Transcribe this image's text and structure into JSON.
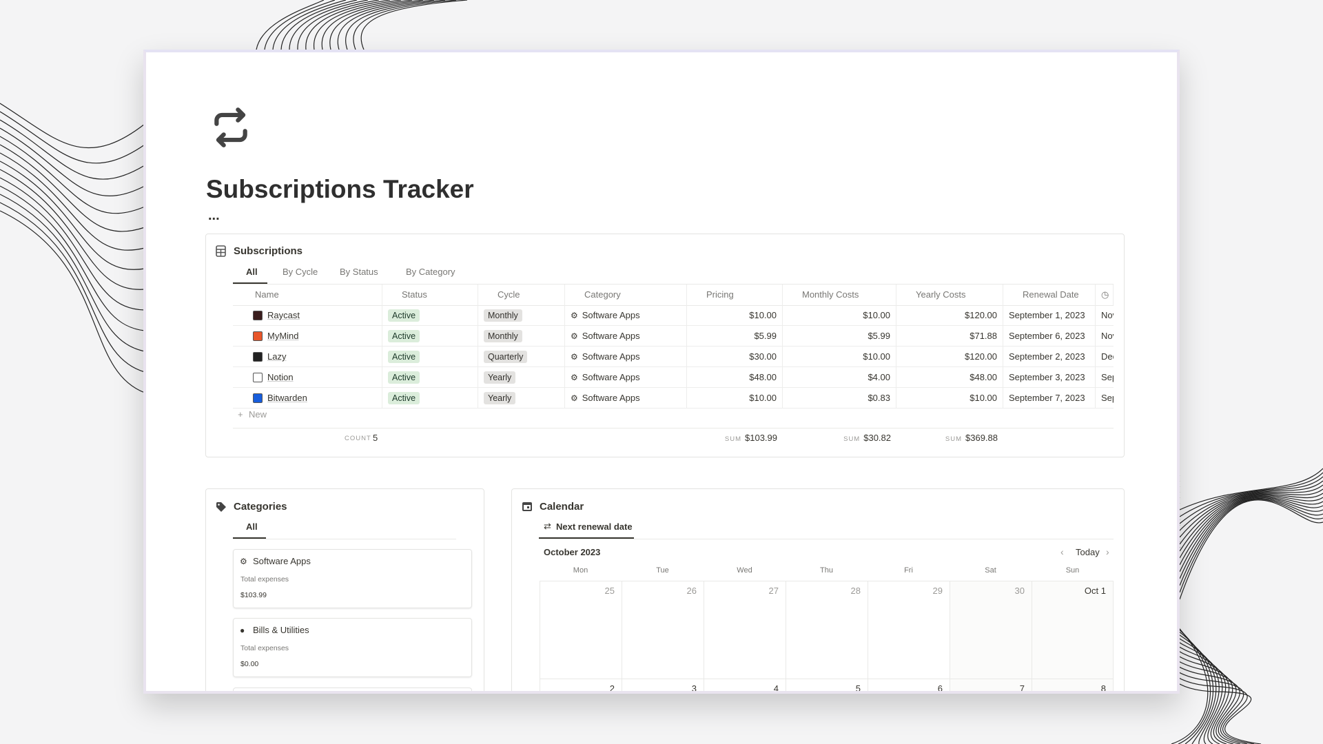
{
  "page": {
    "title": "Subscriptions Tracker",
    "more": "..."
  },
  "subscriptions": {
    "title": "Subscriptions",
    "tabs": [
      "All",
      "By Cycle",
      "By Status",
      "By Category"
    ],
    "columns": [
      "Name",
      "Status",
      "Cycle",
      "Category",
      "Pricing",
      "Monthly Costs",
      "Yearly Costs",
      "Renewal Date"
    ],
    "rows": [
      [
        "Raycast",
        "Active",
        "Monthly",
        "Software Apps",
        "$10.00",
        "$10.00",
        "$120.00",
        "September 1, 2023",
        "Nov"
      ],
      [
        "MyMind",
        "Active",
        "Monthly",
        "Software Apps",
        "$5.99",
        "$5.99",
        "$71.88",
        "September 6, 2023",
        "Nov"
      ],
      [
        "Lazy",
        "Active",
        "Quarterly",
        "Software Apps",
        "$30.00",
        "$10.00",
        "$120.00",
        "September 2, 2023",
        "Dec"
      ],
      [
        "Notion",
        "Active",
        "Yearly",
        "Software Apps",
        "$48.00",
        "$4.00",
        "$48.00",
        "September 3, 2023",
        "Sep"
      ],
      [
        "Bitwarden",
        "Active",
        "Yearly",
        "Software Apps",
        "$10.00",
        "$0.83",
        "$10.00",
        "September 7, 2023",
        "Sep"
      ]
    ],
    "new": "New",
    "count": {
      "label": "COUNT",
      "value": 5
    },
    "sums": [
      {
        "label": "SUM",
        "value": "$103.99"
      },
      {
        "label": "SUM",
        "value": "$30.82"
      },
      {
        "label": "SUM",
        "value": "$369.88"
      }
    ]
  },
  "categories": {
    "title": "Categories",
    "tabs": [
      "All"
    ],
    "cards": [
      {
        "name": "Software Apps",
        "label": "Total expenses",
        "value": "$103.99"
      },
      {
        "name": "Bills & Utilities",
        "label": "Total expenses",
        "value": "$0.00"
      }
    ]
  },
  "calendar": {
    "title": "Calendar",
    "tab": "Next renewal date",
    "month": "October 2023",
    "today": "Today",
    "weekdays": [
      "Mon",
      "Tue",
      "Wed",
      "Thu",
      "Fri",
      "Sat",
      "Sun"
    ],
    "weeks": [
      [
        25,
        26,
        27,
        28,
        29,
        30,
        "Oct 1"
      ],
      [
        2,
        3,
        4,
        5,
        6,
        7,
        8
      ]
    ]
  }
}
